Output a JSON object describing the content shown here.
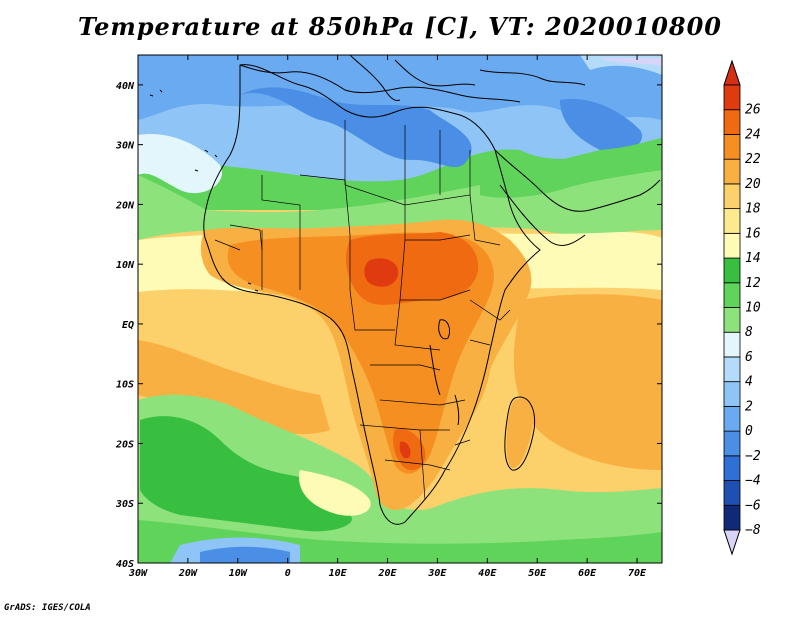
{
  "title": "Temperature at 850hPa [C], VT: 2020010800",
  "credit": "GrADS: IGES/COLA",
  "map": {
    "lon_range": [
      -30,
      75
    ],
    "lat_range": [
      -40,
      45
    ],
    "x_ticks": [
      "30W",
      "20W",
      "10W",
      "0",
      "10E",
      "20E",
      "30E",
      "40E",
      "50E",
      "60E",
      "70E"
    ],
    "y_ticks": [
      "40S",
      "30S",
      "20S",
      "10S",
      "EQ",
      "10N",
      "20N",
      "30N",
      "40N"
    ]
  },
  "colorbar": {
    "labels": [
      "-8",
      "-6",
      "-4",
      "-2",
      "0",
      "2",
      "4",
      "6",
      "8",
      "10",
      "12",
      "14",
      "16",
      "18",
      "20",
      "22",
      "24",
      "26"
    ],
    "colors": [
      "#102a78",
      "#1f4fb3",
      "#2f6fd6",
      "#4a8ee6",
      "#6aaaf0",
      "#8ec4f6",
      "#b4dcfa",
      "#e2f6fb",
      "#8ee27c",
      "#5fd35a",
      "#38bf40",
      "#fdfbb6",
      "#fde98e",
      "#fcd06a",
      "#f9b042",
      "#f58f22",
      "#f06a12",
      "#e03a10"
    ],
    "under_color": "#d8d4f8",
    "over_color": "#d63012"
  }
}
